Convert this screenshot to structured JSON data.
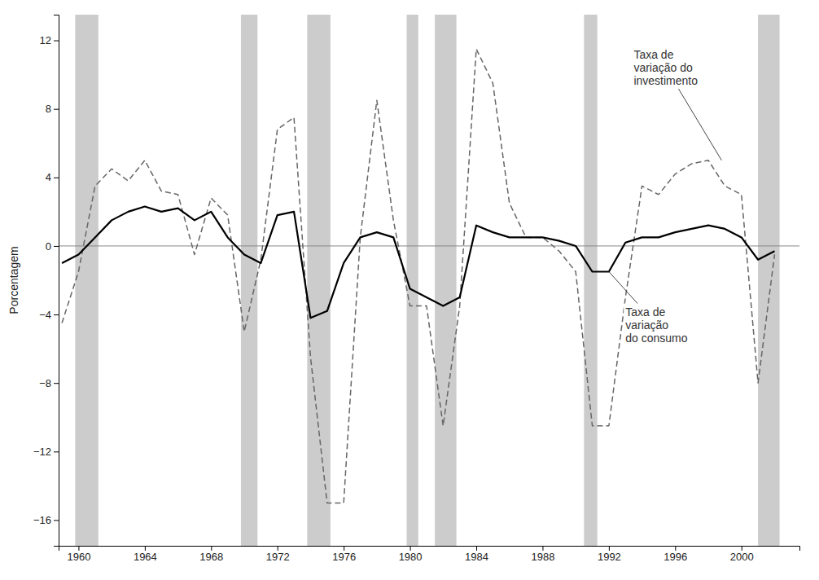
{
  "chart_data": {
    "type": "line",
    "x": [
      1959,
      1960,
      1961,
      1962,
      1963,
      1964,
      1965,
      1966,
      1967,
      1968,
      1969,
      1970,
      1971,
      1972,
      1973,
      1974,
      1975,
      1976,
      1977,
      1978,
      1979,
      1980,
      1981,
      1982,
      1983,
      1984,
      1985,
      1986,
      1987,
      1988,
      1989,
      1990,
      1991,
      1992,
      1993,
      1994,
      1995,
      1996,
      1997,
      1998,
      1999,
      2000,
      2001,
      2002
    ],
    "series": [
      {
        "color": "#666666",
        "line_style": "dashed",
        "values": [
          -4.5,
          -1.5,
          3.5,
          4.5,
          3.8,
          5.0,
          3.2,
          3.0,
          -0.5,
          2.8,
          1.8,
          -5.0,
          -0.8,
          6.8,
          7.5,
          -6.5,
          -15.0,
          -15.0,
          0.5,
          8.5,
          1.5,
          -3.5,
          -3.5,
          -10.5,
          -3.5,
          11.5,
          9.5,
          2.5,
          0.5,
          0.5,
          -0.3,
          -1.5,
          -10.5,
          -10.5,
          -3.0,
          3.5,
          3.0,
          4.2,
          4.8,
          5.0,
          3.5,
          3.0,
          -8.0,
          -0.5
        ]
      },
      {
        "color": "#000000",
        "line_style": "solid",
        "values": [
          -1.0,
          -0.5,
          0.5,
          1.5,
          2.0,
          2.3,
          2.0,
          2.2,
          1.5,
          2.0,
          0.5,
          -0.5,
          -1.0,
          1.8,
          2.0,
          -4.2,
          -3.8,
          -1.0,
          0.5,
          0.8,
          0.5,
          -2.5,
          -3.0,
          -3.5,
          -3.0,
          1.2,
          0.8,
          0.5,
          0.5,
          0.5,
          0.3,
          0.0,
          -1.5,
          -1.5,
          0.2,
          0.5,
          0.5,
          0.8,
          1.0,
          1.2,
          1.0,
          0.5,
          -0.8,
          -0.3
        ]
      }
    ],
    "ylabel": "Porcentagem",
    "xlim": [
      1958.8,
      2003.5
    ],
    "ylim": [
      -17.5,
      13.5
    ],
    "xticks": [
      1960,
      1964,
      1968,
      1972,
      1976,
      1980,
      1984,
      1988,
      1992,
      1996,
      2000
    ],
    "yticks": [
      {
        "value": -16,
        "label": "−16"
      },
      {
        "value": -12,
        "label": "−12"
      },
      {
        "value": -8,
        "label": "−8"
      },
      {
        "value": -4,
        "label": "−4"
      },
      0,
      4,
      8,
      12
    ],
    "grid": false,
    "bands": {
      "color": "#cccccc",
      "ranges": [
        [
          1959.8,
          1961.2
        ],
        [
          1969.8,
          1970.8
        ],
        [
          1973.8,
          1975.2
        ],
        [
          1979.8,
          1980.5
        ],
        [
          1981.5,
          1982.8
        ],
        [
          1990.5,
          1991.3
        ],
        [
          2001.0,
          2002.3
        ]
      ]
    },
    "zero_line": {
      "value": 0,
      "color": "#888888"
    },
    "annotations": [
      {
        "text": [
          "Taxa de",
          "variação do",
          "investimento"
        ],
        "xy": [
          1998.8,
          5.0
        ],
        "xytext": [
          1993.5,
          11.5
        ]
      },
      {
        "text": [
          "Taxa de",
          "variação",
          "do consumo"
        ],
        "xy": [
          1992.0,
          -1.5
        ],
        "xytext": [
          1993.0,
          -3.5
        ]
      }
    ]
  }
}
